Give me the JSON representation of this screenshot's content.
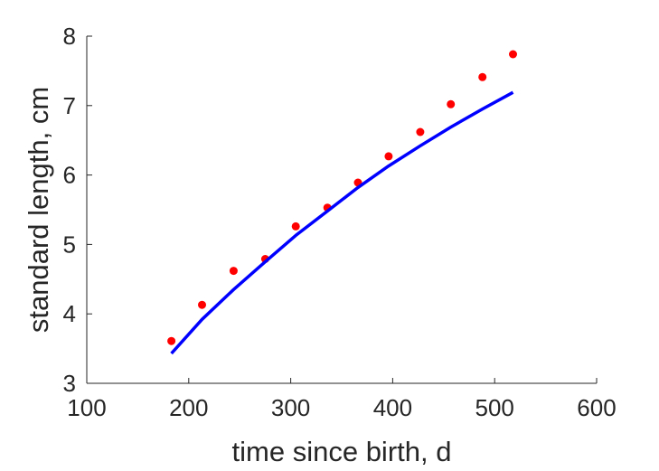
{
  "chart_data": {
    "type": "scatter",
    "xlabel": "time since birth, d",
    "ylabel": "standard length, cm",
    "xlim": [
      100,
      600
    ],
    "ylim": [
      3,
      8
    ],
    "xticks": [
      "100",
      "200",
      "300",
      "400",
      "500",
      "600"
    ],
    "yticks": [
      "3",
      "4",
      "5",
      "6",
      "7",
      "8"
    ],
    "grid": false,
    "series": [
      {
        "kind": "points",
        "color": "#ff0000",
        "x": [
          183,
          213,
          244,
          275,
          305,
          336,
          366,
          396,
          427,
          457,
          488,
          518
        ],
        "y": [
          3.61,
          4.13,
          4.62,
          4.79,
          5.26,
          5.53,
          5.89,
          6.27,
          6.62,
          7.02,
          7.41,
          7.74
        ]
      },
      {
        "kind": "line",
        "color": "#0000ff",
        "x": [
          183,
          213,
          244,
          275,
          305,
          336,
          366,
          396,
          427,
          457,
          488,
          518
        ],
        "y": [
          3.43,
          3.92,
          4.35,
          4.75,
          5.13,
          5.48,
          5.82,
          6.13,
          6.42,
          6.69,
          6.95,
          7.19
        ]
      }
    ]
  }
}
